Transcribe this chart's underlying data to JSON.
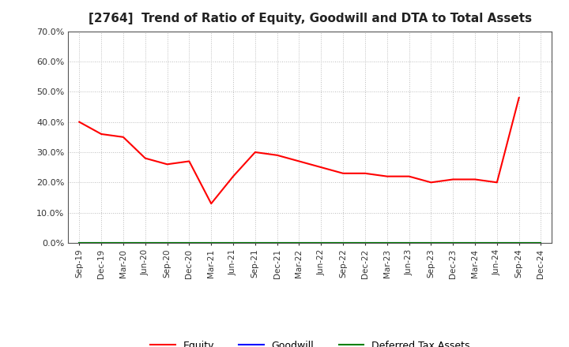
{
  "title": "[2764]  Trend of Ratio of Equity, Goodwill and DTA to Total Assets",
  "x_labels": [
    "Sep-19",
    "Dec-19",
    "Mar-20",
    "Jun-20",
    "Sep-20",
    "Dec-20",
    "Mar-21",
    "Jun-21",
    "Sep-21",
    "Dec-21",
    "Mar-22",
    "Jun-22",
    "Sep-22",
    "Dec-22",
    "Mar-23",
    "Jun-23",
    "Sep-23",
    "Dec-23",
    "Mar-24",
    "Jun-24",
    "Sep-24",
    "Dec-24"
  ],
  "equity": [
    0.4,
    0.36,
    0.35,
    0.28,
    0.26,
    0.27,
    0.13,
    0.22,
    0.3,
    0.29,
    0.27,
    0.25,
    0.23,
    0.23,
    0.22,
    0.22,
    0.2,
    0.21,
    0.21,
    0.2,
    0.48,
    null
  ],
  "goodwill": [
    0.0,
    0.0,
    0.0,
    0.0,
    0.0,
    0.0,
    0.0,
    0.0,
    0.0,
    0.0,
    0.0,
    0.0,
    0.0,
    0.0,
    0.0,
    0.0,
    0.0,
    0.0,
    0.0,
    0.0,
    0.0,
    0.0
  ],
  "dta": [
    0.0,
    0.0,
    0.0,
    0.0,
    0.0,
    0.0,
    0.0,
    0.0,
    0.0,
    0.0,
    0.0,
    0.0,
    0.0,
    0.0,
    0.0,
    0.0,
    0.0,
    0.0,
    0.0,
    0.0,
    0.0,
    0.0
  ],
  "ylim": [
    0.0,
    0.7
  ],
  "yticks": [
    0.0,
    0.1,
    0.2,
    0.3,
    0.4,
    0.5,
    0.6,
    0.7
  ],
  "equity_color": "#ff0000",
  "goodwill_color": "#0000ff",
  "dta_color": "#008000",
  "background_color": "#ffffff",
  "grid_color": "#bbbbbb",
  "title_fontsize": 11,
  "tick_fontsize": 7.5,
  "legend_fontsize": 9
}
